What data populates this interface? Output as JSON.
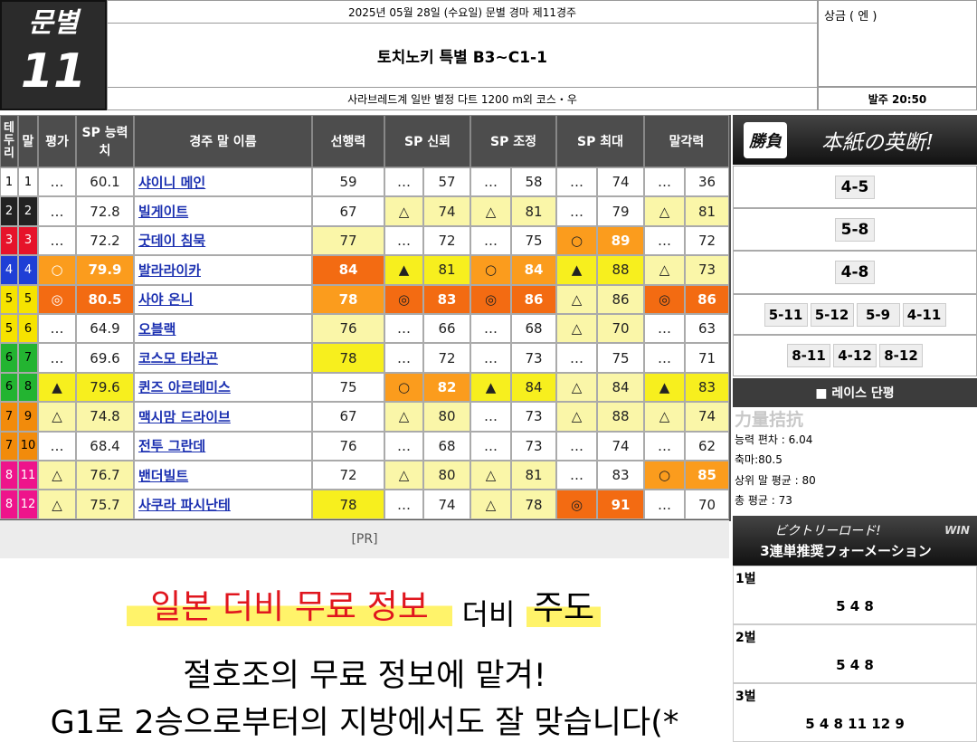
{
  "header": {
    "race_label": "문별",
    "race_number": "11",
    "date_line": "2025년 05월 28일 (수요일) 문별 경마 제11경주",
    "title": "토치노키 특별 B3~C1-1",
    "conditions": "사라브레드계 일반 별정 다트 1200 m외 코스・우",
    "prize": "상금 ( 엔 )",
    "post_time": "발주 20:50"
  },
  "table": {
    "columns": [
      "테두리",
      "말",
      "평가",
      "SP 능력치",
      "경주 말 이름",
      "선행력",
      "SP 신뢰",
      "SP 조정",
      "SP 최대",
      "말각력"
    ],
    "rows": [
      [
        1,
        1,
        "…",
        60.1,
        "샤이니 메인",
        59,
        "…",
        57,
        "…",
        58,
        "…",
        74,
        "…",
        36
      ],
      [
        2,
        2,
        "…",
        72.8,
        "빌게이트",
        67,
        "△",
        74,
        "△",
        81,
        "…",
        79,
        "△",
        81
      ],
      [
        3,
        3,
        "…",
        72.2,
        "굿데이 침묵",
        77,
        "…",
        72,
        "…",
        75,
        "○",
        89,
        "…",
        72
      ],
      [
        4,
        4,
        "○",
        79.9,
        "발라라이카",
        84,
        "▲",
        81,
        "○",
        84,
        "▲",
        88,
        "△",
        73
      ],
      [
        5,
        5,
        "◎",
        80.5,
        "사야 온니",
        78,
        "◎",
        83,
        "◎",
        86,
        "△",
        86,
        "◎",
        86
      ],
      [
        5,
        6,
        "…",
        64.9,
        "오블랙",
        76,
        "…",
        66,
        "…",
        68,
        "△",
        70,
        "…",
        63
      ],
      [
        6,
        7,
        "…",
        69.6,
        "코스모 타라곤",
        78,
        "…",
        72,
        "…",
        73,
        "…",
        75,
        "…",
        71
      ],
      [
        6,
        8,
        "▲",
        79.6,
        "퀸즈 아르테미스",
        75,
        "○",
        82,
        "▲",
        84,
        "△",
        84,
        "▲",
        83
      ],
      [
        7,
        9,
        "△",
        74.8,
        "맥시맘 드라이브",
        67,
        "△",
        80,
        "…",
        73,
        "△",
        88,
        "△",
        74
      ],
      [
        7,
        10,
        "…",
        68.4,
        "전투 그란데",
        76,
        "…",
        68,
        "…",
        73,
        "…",
        74,
        "…",
        62
      ],
      [
        8,
        11,
        "△",
        76.7,
        "밴더빌트",
        72,
        "△",
        80,
        "△",
        81,
        "…",
        83,
        "○",
        85
      ],
      [
        8,
        12,
        "△",
        75.7,
        "사쿠라 파시난테",
        78,
        "…",
        74,
        "△",
        78,
        "◎",
        91,
        "…",
        70
      ]
    ]
  },
  "picks": {
    "stamp": "勝負",
    "banner": "本紙の英断!",
    "rows": [
      [
        "4-5"
      ],
      [
        "5-8"
      ],
      [
        "4-8"
      ],
      [
        "5-11",
        "5-12",
        "5-9",
        "4-11"
      ],
      [
        "8-11",
        "4-12",
        "8-12"
      ]
    ]
  },
  "comment": {
    "title": "■ 레이스 단평",
    "verdict": "力量拮抗",
    "lines": [
      "능력 편차 : 6.04",
      "축마:80.5",
      "상위 말 평균 : 80",
      "총 평균 : 73"
    ]
  },
  "formation": {
    "title1": "ビクトリーロード!",
    "title2": "3連単推奨フォーメーション",
    "badge": "WIN",
    "legs": [
      {
        "label": "1벌",
        "horses": "5 4 8"
      },
      {
        "label": "2벌",
        "horses": "5 4 8"
      },
      {
        "label": "3벌",
        "horses": "5 4 8 11 12 9"
      }
    ]
  },
  "ad": {
    "pr": "[PR]",
    "headline": "일본 더비 무료 정보",
    "word1": "더비",
    "word2": "주도",
    "line2": "절호조의 무료 정보에 맡겨!",
    "line3": "G1로 2승으로부터의 지방에서도 잘 맞습니다(*"
  }
}
